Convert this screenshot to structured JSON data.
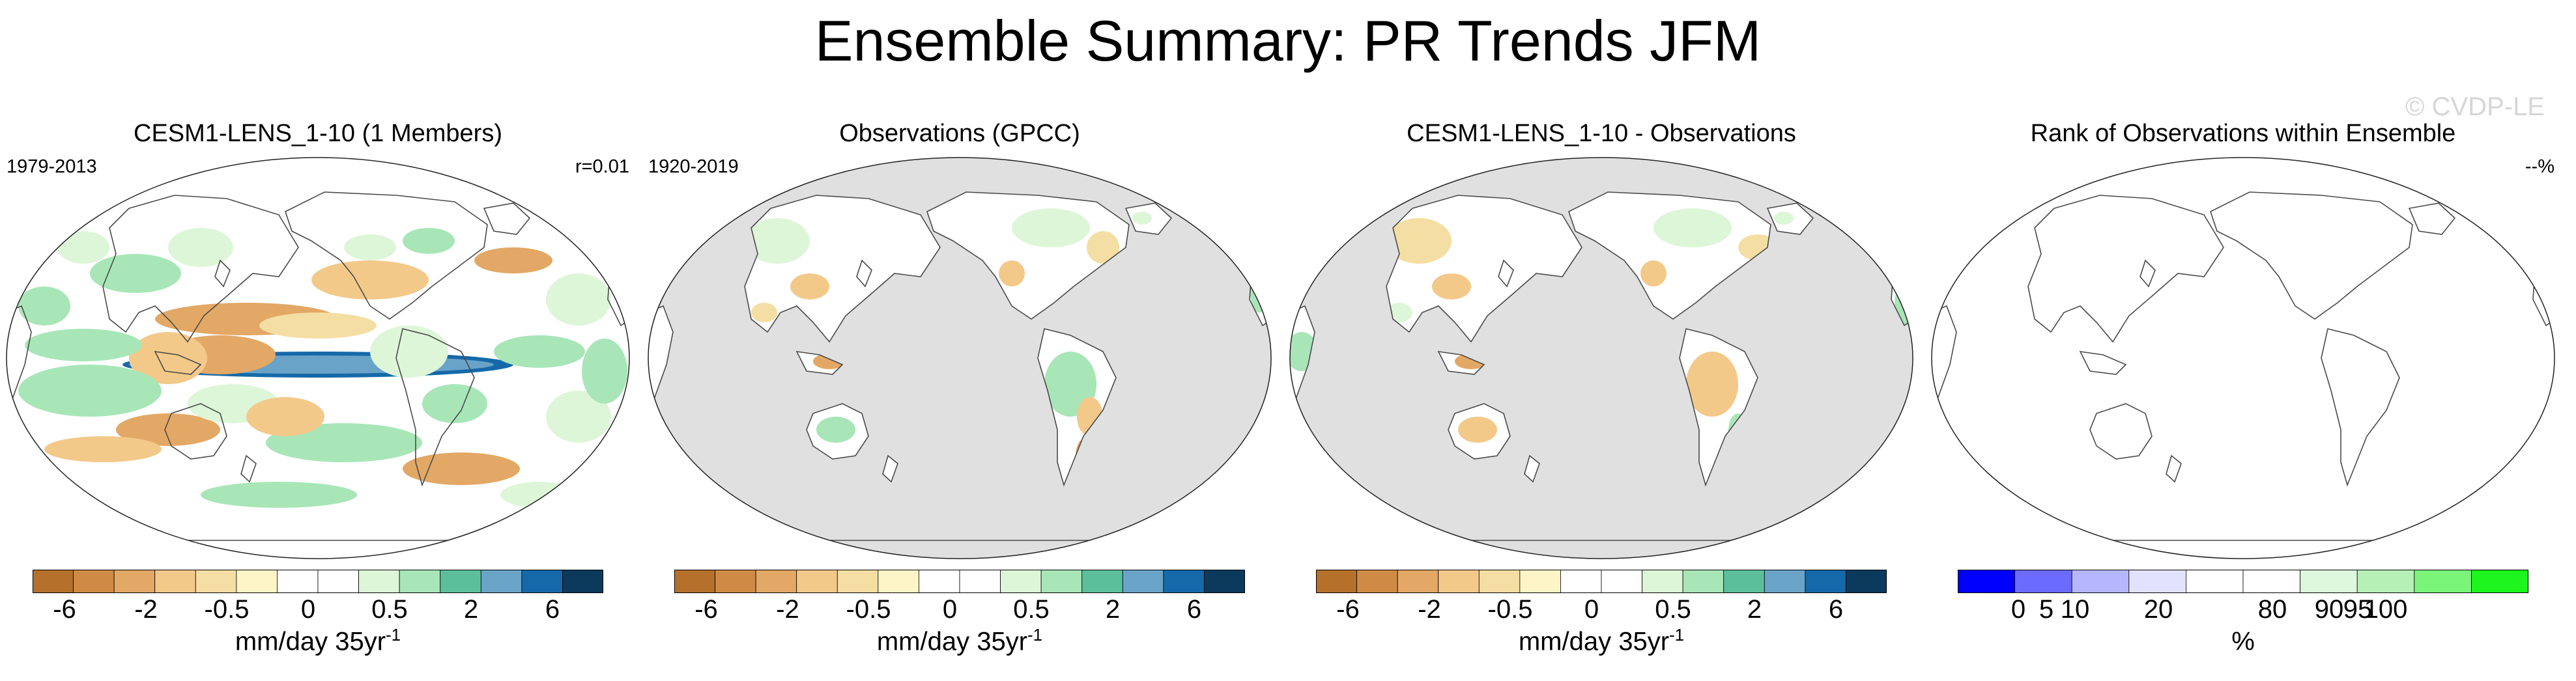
{
  "title": "Ensemble Summary: PR Trends JFM",
  "watermark": "© CVDP-LE",
  "diverging_colors": [
    "#b5702b",
    "#cf8b45",
    "#e3a865",
    "#f3c98a",
    "#f4dea3",
    "#fdf4c7",
    "#ffffff",
    "#ffffff",
    "#ddf6d8",
    "#a8e6b8",
    "#5cbf9c",
    "#6aa3c8",
    "#1569a8",
    "#0b3a5c"
  ],
  "rank_colors": [
    "#0000ff",
    "#6b6bff",
    "#b6b6ff",
    "#e2e2ff",
    "#ffffff",
    "#ffffff",
    "#ddf8dd",
    "#b7f0b7",
    "#7af57a",
    "#1ef51e"
  ],
  "chart_data": [
    {
      "type": "heatmap",
      "title": "CESM1-LENS_1-10 (1 Members)",
      "title_color": "#1f6ea8",
      "left_label": "1979-2013",
      "right_label": "r=0.01",
      "projection": "global map, Pacific-centered",
      "land_masked": false,
      "colorbar": {
        "levels": [
          "-6",
          "-2",
          "-0.5",
          "0",
          "0.5",
          "2",
          "6"
        ],
        "label": "mm/day 35yr",
        "label_superscript": "-1"
      }
    },
    {
      "type": "heatmap",
      "title": "Observations (GPCC)",
      "title_color": "#000000",
      "left_label": "1920-2019",
      "right_label": "",
      "projection": "global map, Pacific-centered",
      "land_masked": true,
      "colorbar": {
        "levels": [
          "-6",
          "-2",
          "-0.5",
          "0",
          "0.5",
          "2",
          "6"
        ],
        "label": "mm/day 35yr",
        "label_superscript": "-1"
      }
    },
    {
      "type": "heatmap",
      "title": "CESM1-LENS_1-10 - Observations",
      "title_color": "#000000",
      "left_label": "",
      "right_label": "",
      "projection": "global map, Pacific-centered",
      "land_masked": true,
      "colorbar": {
        "levels": [
          "-6",
          "-2",
          "-0.5",
          "0",
          "0.5",
          "2",
          "6"
        ],
        "label": "mm/day 35yr",
        "label_superscript": "-1"
      }
    },
    {
      "type": "heatmap",
      "title": "Rank of Observations within Ensemble",
      "title_color": "#000000",
      "left_label": "",
      "right_label": "--%",
      "projection": "global map, Pacific-centered",
      "land_masked": false,
      "colorbar": {
        "levels": [
          "0",
          "5",
          "10",
          "20",
          "80",
          "90",
          "95",
          "100"
        ],
        "label": "%",
        "label_superscript": ""
      }
    }
  ]
}
